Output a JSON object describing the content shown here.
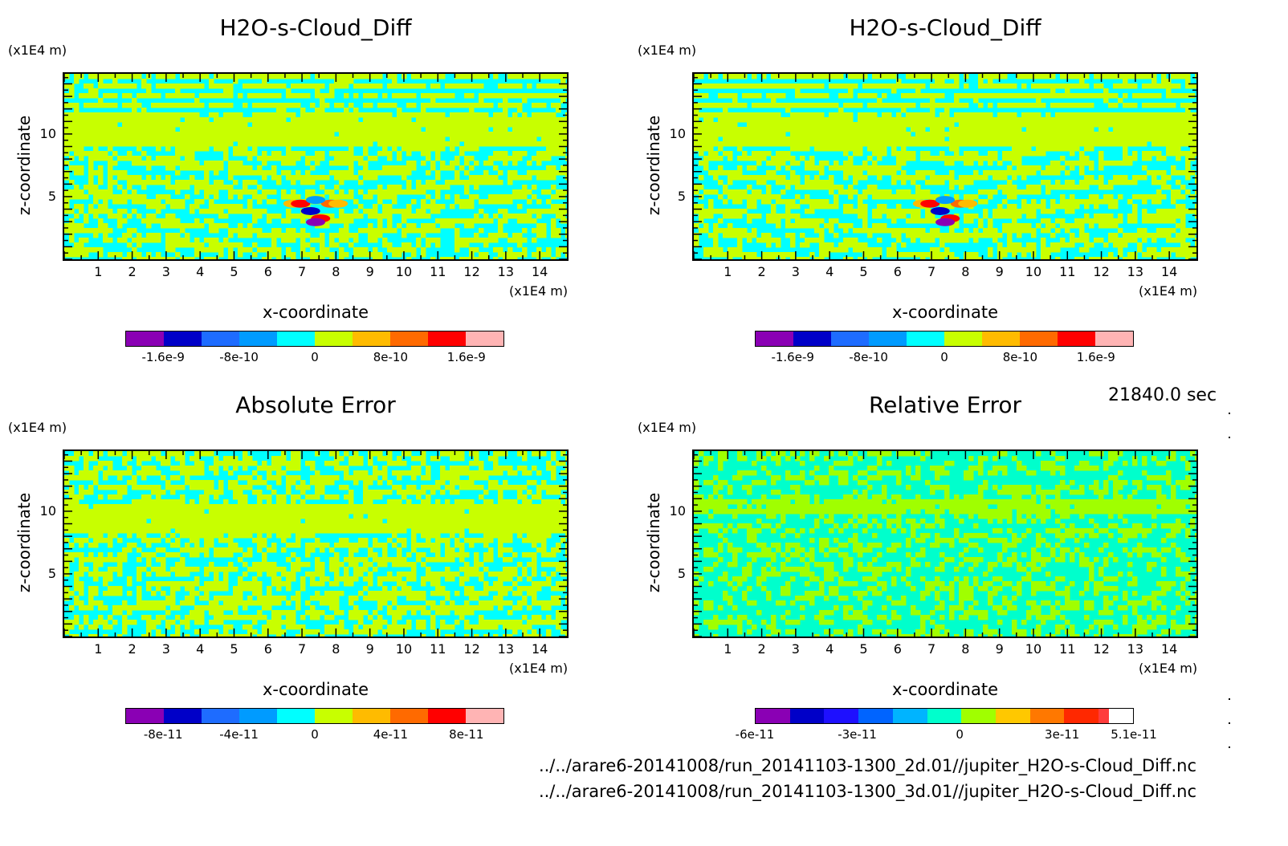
{
  "chart_data": [
    {
      "type": "heatmap",
      "title": "H2O-s-Cloud_Diff",
      "xlabel": "x-coordinate",
      "ylabel": "z-coordinate",
      "x_unit": "(x1E4 m)",
      "y_unit": "(x1E4 m)",
      "x_ticks": [
        "1",
        "2",
        "3",
        "4",
        "5",
        "6",
        "7",
        "8",
        "9",
        "10",
        "11",
        "12",
        "13",
        "14"
      ],
      "y_ticks": [
        "10",
        "5"
      ],
      "xlim": [
        0,
        14.8
      ],
      "ylim": [
        0,
        14.8
      ],
      "colorbar": {
        "colors": [
          "#8a00b4",
          "#0000c8",
          "#1e6cff",
          "#009bff",
          "#00ffff",
          "#c8ff00",
          "#ffbb00",
          "#ff6a00",
          "#ff0000",
          "#ffb4b4"
        ],
        "tick_labels": [
          "-1.6e-9",
          "-8e-10",
          "0",
          "8e-10",
          "1.6e-9"
        ],
        "tick_values": [
          -1.6e-09,
          -8e-10,
          0,
          8e-10,
          1.6e-09
        ],
        "range": [
          -2e-09,
          2e-09
        ]
      }
    },
    {
      "type": "heatmap",
      "title": "H2O-s-Cloud_Diff",
      "xlabel": "x-coordinate",
      "ylabel": "z-coordinate",
      "x_unit": "(x1E4 m)",
      "y_unit": "(x1E4 m)",
      "x_ticks": [
        "1",
        "2",
        "3",
        "4",
        "5",
        "6",
        "7",
        "8",
        "9",
        "10",
        "11",
        "12",
        "13",
        "14"
      ],
      "y_ticks": [
        "10",
        "5"
      ],
      "xlim": [
        0,
        14.8
      ],
      "ylim": [
        0,
        14.8
      ],
      "colorbar": {
        "colors": [
          "#8a00b4",
          "#0000c8",
          "#1e6cff",
          "#009bff",
          "#00ffff",
          "#c8ff00",
          "#ffbb00",
          "#ff6a00",
          "#ff0000",
          "#ffb4b4"
        ],
        "tick_labels": [
          "-1.6e-9",
          "-8e-10",
          "0",
          "8e-10",
          "1.6e-9"
        ],
        "tick_values": [
          -1.6e-09,
          -8e-10,
          0,
          8e-10,
          1.6e-09
        ],
        "range": [
          -2e-09,
          2e-09
        ]
      }
    },
    {
      "type": "heatmap",
      "title": "Absolute Error",
      "xlabel": "x-coordinate",
      "ylabel": "z-coordinate",
      "x_unit": "(x1E4 m)",
      "y_unit": "(x1E4 m)",
      "x_ticks": [
        "1",
        "2",
        "3",
        "4",
        "5",
        "6",
        "7",
        "8",
        "9",
        "10",
        "11",
        "12",
        "13",
        "14"
      ],
      "y_ticks": [
        "10",
        "5"
      ],
      "xlim": [
        0,
        14.8
      ],
      "ylim": [
        0,
        14.8
      ],
      "colorbar": {
        "colors": [
          "#8a00b4",
          "#0000c8",
          "#1e6cff",
          "#009bff",
          "#00ffff",
          "#c8ff00",
          "#ffbb00",
          "#ff6a00",
          "#ff0000",
          "#ffb4b4"
        ],
        "tick_labels": [
          "-8e-11",
          "-4e-11",
          "0",
          "4e-11",
          "8e-11"
        ],
        "tick_values": [
          -8e-11,
          -4e-11,
          0,
          4e-11,
          8e-11
        ],
        "range": [
          -1e-10,
          1e-10
        ]
      }
    },
    {
      "type": "heatmap",
      "title": "Relative Error",
      "xlabel": "x-coordinate",
      "ylabel": "z-coordinate",
      "x_unit": "(x1E4 m)",
      "y_unit": "(x1E4 m)",
      "x_ticks": [
        "1",
        "2",
        "3",
        "4",
        "5",
        "6",
        "7",
        "8",
        "9",
        "10",
        "11",
        "12",
        "13",
        "14"
      ],
      "y_ticks": [
        "10",
        "5"
      ],
      "xlim": [
        0,
        14.8
      ],
      "ylim": [
        0,
        14.8
      ],
      "colorbar": {
        "colors": [
          "#8a00b4",
          "#0000c8",
          "#1e10ff",
          "#0064ff",
          "#00b4ff",
          "#00ffcc",
          "#a0ff00",
          "#ffc800",
          "#ff7800",
          "#ff2800",
          "#ff3c3c"
        ],
        "tick_labels": [
          "-6e-11",
          "-3e-11",
          "0",
          "3e-11",
          "5.1e-11"
        ],
        "tick_values": [
          -6e-11,
          -3e-11,
          0,
          3e-11,
          5.1e-11
        ],
        "range": [
          -6e-11,
          5.1e-11
        ]
      }
    }
  ],
  "time_label": "21840.0 sec",
  "files": [
    "../../arare6-20141008/run_20141103-1300_2d.01//jupiter_H2O-s-Cloud_Diff.nc",
    "../../arare6-20141008/run_20141103-1300_3d.01//jupiter_H2O-s-Cloud_Diff.nc"
  ]
}
